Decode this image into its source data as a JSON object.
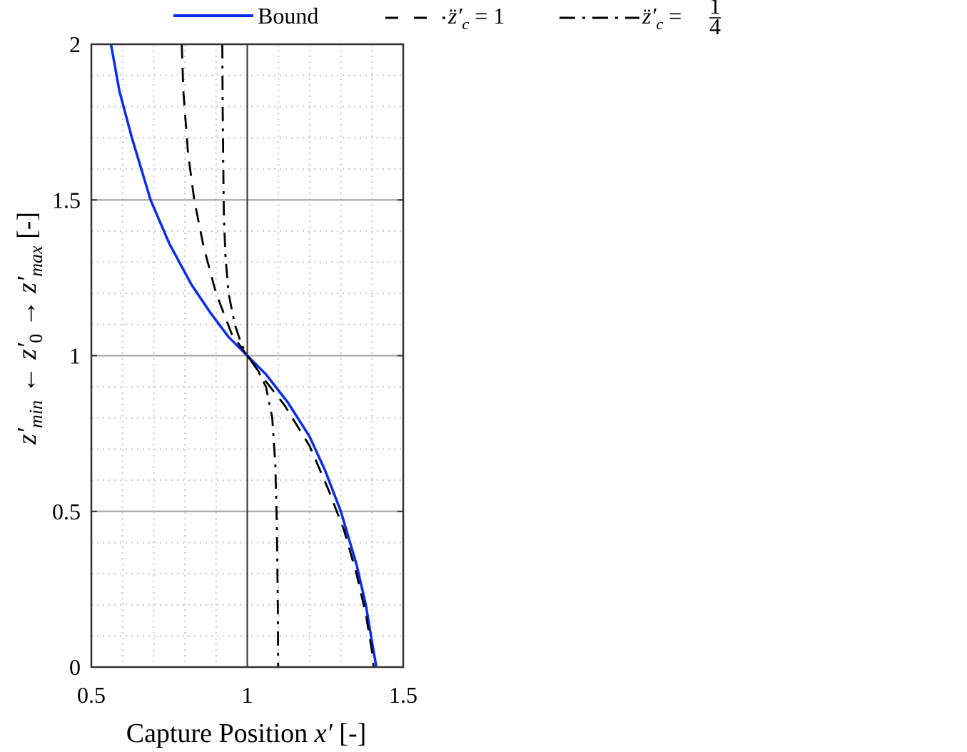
{
  "chart_data": {
    "type": "line",
    "xlabel": "Capture Position x′ [-]",
    "ylabel": "z′min ← z′0 → z′max [-]",
    "xlim": [
      0.5,
      1.5
    ],
    "ylim": [
      0,
      2
    ],
    "xticks": [
      "0.5",
      "1",
      "1.5"
    ],
    "yticks": [
      "0",
      "0.5",
      "1",
      "1.5",
      "2"
    ],
    "grid": "minor-dotted",
    "legend_position": "top",
    "reference_lines": {
      "vertical_x": 1,
      "horizontal_y": [
        0.5,
        1,
        1.5
      ]
    },
    "series": [
      {
        "name": "Bound",
        "style": "solid",
        "color": "#0a2cf0",
        "points": [
          [
            0.563,
            2.0
          ],
          [
            0.59,
            1.85
          ],
          [
            0.63,
            1.7
          ],
          [
            0.69,
            1.5
          ],
          [
            0.75,
            1.36
          ],
          [
            0.82,
            1.23
          ],
          [
            0.88,
            1.14
          ],
          [
            0.94,
            1.06
          ],
          [
            1.0,
            1.0
          ],
          [
            1.06,
            0.94
          ],
          [
            1.13,
            0.85
          ],
          [
            1.2,
            0.74
          ],
          [
            1.25,
            0.63
          ],
          [
            1.3,
            0.5
          ],
          [
            1.35,
            0.33
          ],
          [
            1.38,
            0.2
          ],
          [
            1.4,
            0.08
          ],
          [
            1.414,
            0.0
          ]
        ]
      },
      {
        "name": "z̈′c = 1",
        "style": "dashed",
        "color": "#000000",
        "points": [
          [
            0.79,
            2.0
          ],
          [
            0.795,
            1.85
          ],
          [
            0.81,
            1.65
          ],
          [
            0.83,
            1.5
          ],
          [
            0.86,
            1.35
          ],
          [
            0.9,
            1.2
          ],
          [
            0.95,
            1.07
          ],
          [
            1.0,
            1.0
          ],
          [
            1.05,
            0.93
          ],
          [
            1.12,
            0.84
          ],
          [
            1.2,
            0.71
          ],
          [
            1.26,
            0.57
          ],
          [
            1.31,
            0.44
          ],
          [
            1.35,
            0.3
          ],
          [
            1.38,
            0.17
          ],
          [
            1.4,
            0.05
          ],
          [
            1.405,
            0.0
          ]
        ]
      },
      {
        "name": "z̈′c = 1/4",
        "style": "dashdot",
        "color": "#000000",
        "points": [
          [
            0.92,
            2.0
          ],
          [
            0.921,
            1.8
          ],
          [
            0.923,
            1.6
          ],
          [
            0.925,
            1.45
          ],
          [
            0.93,
            1.32
          ],
          [
            0.94,
            1.2
          ],
          [
            0.96,
            1.1
          ],
          [
            0.98,
            1.04
          ],
          [
            1.0,
            1.0
          ],
          [
            1.03,
            0.96
          ],
          [
            1.06,
            0.9
          ],
          [
            1.08,
            0.8
          ],
          [
            1.09,
            0.65
          ],
          [
            1.095,
            0.45
          ],
          [
            1.098,
            0.2
          ],
          [
            1.099,
            0.0
          ]
        ]
      }
    ]
  },
  "legend": {
    "bound": "Bound",
    "z1_prefix": "z̈′",
    "z1_sub": "c",
    "z1_eq": " = 1",
    "z2_prefix": "z̈′",
    "z2_sub": "c",
    "z2_eq": " = ",
    "z2_num": "1",
    "z2_den": "4"
  },
  "labels": {
    "x_prefix": "Capture Position ",
    "x_var": "x′",
    "x_unit": " [-]",
    "y_z": "z′",
    "y_min": "min",
    "y_left_arrow": " ← ",
    "y_zero": "0",
    "y_right_arrow": " → ",
    "y_max": "max",
    "y_unit": "  [-]"
  }
}
